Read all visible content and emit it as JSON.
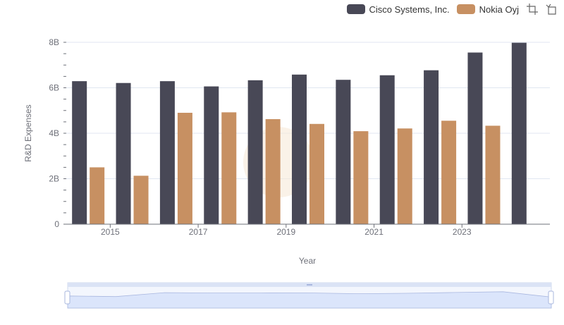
{
  "legend": {
    "items": [
      {
        "label": "Cisco Systems, Inc.",
        "color": "#484856"
      },
      {
        "label": "Nokia Oyj",
        "color": "#c79062"
      }
    ]
  },
  "toolbox": {
    "icons": [
      "zoom-icon",
      "restore-icon"
    ]
  },
  "chart_data": {
    "type": "bar",
    "xlabel": "Year",
    "ylabel": "R&D Expenses",
    "x_tick_labels": [
      "2015",
      "2017",
      "2019",
      "2021",
      "2023"
    ],
    "y_tick_labels": [
      "0",
      "2B",
      "4B",
      "6B",
      "8B"
    ],
    "ylim": [
      0,
      8000000000
    ],
    "categories": [
      "2014",
      "2015",
      "2016",
      "2017",
      "2018",
      "2019",
      "2020",
      "2021",
      "2022",
      "2023",
      "2024"
    ],
    "series": [
      {
        "name": "Cisco Systems, Inc.",
        "color": "#484856",
        "values": [
          6290000000,
          6210000000,
          6290000000,
          6060000000,
          6330000000,
          6580000000,
          6350000000,
          6550000000,
          6770000000,
          7550000000,
          7980000000
        ]
      },
      {
        "name": "Nokia Oyj",
        "color": "#c79062",
        "values": [
          2500000000,
          2130000000,
          4900000000,
          4920000000,
          4620000000,
          4410000000,
          4090000000,
          4210000000,
          4550000000,
          4330000000,
          null
        ]
      }
    ],
    "grid": true,
    "legend_position": "top-right",
    "data_zoom": {
      "start": 0,
      "end": 100
    }
  }
}
